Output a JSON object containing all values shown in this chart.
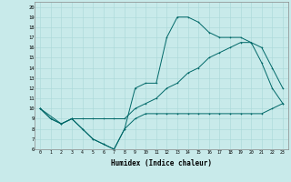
{
  "title": "",
  "xlabel": "Humidex (Indice chaleur)",
  "bg_color": "#c8eaea",
  "grid_color": "#a8d8d8",
  "line_color": "#006868",
  "xlim": [
    -0.5,
    23.5
  ],
  "ylim": [
    6,
    20.5
  ],
  "xticks": [
    0,
    1,
    2,
    3,
    4,
    5,
    6,
    7,
    8,
    9,
    10,
    11,
    12,
    13,
    14,
    15,
    16,
    17,
    18,
    19,
    20,
    21,
    22,
    23
  ],
  "yticks": [
    6,
    7,
    8,
    9,
    10,
    11,
    12,
    13,
    14,
    15,
    16,
    17,
    18,
    19,
    20
  ],
  "line1_x": [
    0,
    1,
    2,
    3,
    4,
    5,
    6,
    7,
    8,
    9,
    10,
    11,
    12,
    13,
    14,
    15,
    16,
    17,
    18,
    19,
    20,
    21,
    22,
    23
  ],
  "line1_y": [
    10,
    9,
    8.5,
    9,
    8,
    7,
    6.5,
    6,
    8,
    9,
    9.5,
    9.5,
    9.5,
    9.5,
    9.5,
    9.5,
    9.5,
    9.5,
    9.5,
    9.5,
    9.5,
    9.5,
    10,
    10.5
  ],
  "line2_x": [
    0,
    1,
    2,
    3,
    4,
    5,
    6,
    7,
    8,
    9,
    10,
    11,
    12,
    13,
    14,
    15,
    16,
    17,
    18,
    19,
    20,
    21,
    22,
    23
  ],
  "line2_y": [
    10,
    9,
    8.5,
    9,
    8,
    7,
    6.5,
    6,
    8,
    12,
    12.5,
    12.5,
    17,
    19,
    19,
    18.5,
    17.5,
    17,
    17,
    17,
    16.5,
    14.5,
    12,
    10.5
  ],
  "line3_x": [
    0,
    2,
    3,
    4,
    5,
    6,
    7,
    8,
    9,
    10,
    11,
    12,
    13,
    14,
    15,
    16,
    17,
    18,
    19,
    20,
    21,
    22,
    23
  ],
  "line3_y": [
    10,
    8.5,
    9,
    9,
    9,
    9,
    9,
    9,
    10,
    10.5,
    11,
    12,
    12.5,
    13.5,
    14,
    15,
    15.5,
    16,
    16.5,
    16.5,
    16,
    14,
    12
  ]
}
